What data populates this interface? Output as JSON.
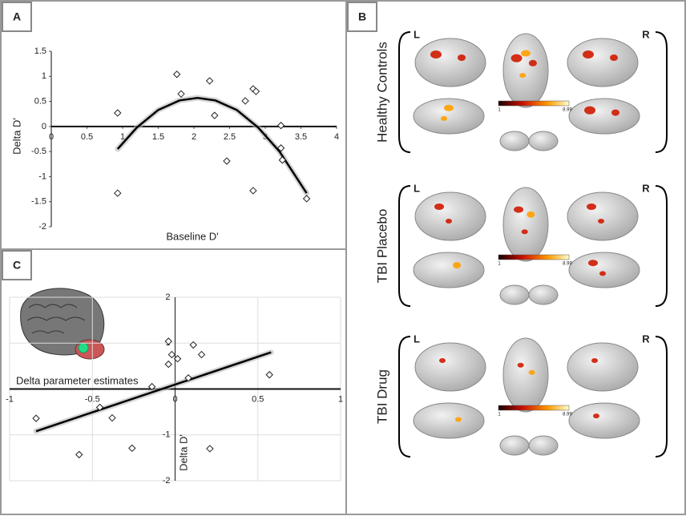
{
  "panel_labels": [
    "A",
    "B",
    "C"
  ],
  "chart_data": [
    {
      "type": "scatter",
      "ylabel": "Delta D'",
      "xlabel": "Baseline D'",
      "x": [
        0.93,
        0.93,
        1.76,
        1.82,
        2.22,
        2.29,
        2.46,
        2.72,
        2.83,
        2.87,
        2.83,
        3.22,
        3.22,
        3.24,
        3.58
      ],
      "values": [
        0.27,
        -1.33,
        1.04,
        0.65,
        0.91,
        0.22,
        -0.69,
        0.51,
        0.75,
        0.7,
        -1.28,
        0.02,
        -0.43,
        -0.67,
        -1.44
      ],
      "trend": {
        "x": [
          0.93,
          1.2,
          1.5,
          1.8,
          2.05,
          2.3,
          2.6,
          2.9,
          3.2,
          3.58
        ],
        "values": [
          -0.45,
          -0.02,
          0.33,
          0.52,
          0.57,
          0.52,
          0.33,
          -0.02,
          -0.5,
          -1.33
        ]
      },
      "xlim": [
        0,
        4
      ],
      "ylim": [
        -2,
        1.5
      ],
      "xticks": [
        0,
        0.5,
        1,
        1.5,
        2,
        2.5,
        3,
        3.5,
        4
      ],
      "yticks": [
        -2,
        -1.5,
        -1,
        -0.5,
        0,
        0.5,
        1,
        1.5
      ],
      "grid": false
    },
    {
      "type": "scatter",
      "ylabel": "Delta D'",
      "xlabel": "Delta parameter estimates",
      "x": [
        -0.84,
        -0.58,
        -0.455,
        -0.38,
        -0.26,
        -0.14,
        -0.04,
        -0.04,
        -0.02,
        0.015,
        0.11,
        0.16,
        0.08,
        0.21,
        0.57
      ],
      "values": [
        -0.64,
        -1.43,
        -0.4,
        -0.63,
        -1.29,
        0.05,
        0.54,
        1.04,
        0.75,
        0.66,
        0.96,
        0.75,
        0.24,
        -1.3,
        0.31
      ],
      "trend": {
        "x": [
          -0.84,
          0.58
        ],
        "values": [
          -0.92,
          0.8
        ]
      },
      "xlim": [
        -1,
        1
      ],
      "ylim": [
        -2,
        2
      ],
      "xticks": [
        -1,
        -0.5,
        0,
        0.5,
        1
      ],
      "yticks": [
        -2,
        -1,
        1,
        2
      ],
      "grid": true
    }
  ],
  "brain_panel": {
    "groups": [
      {
        "title": "Healthy Controls",
        "left": "L",
        "right": "R",
        "colorbar": [
          1,
          8.99
        ]
      },
      {
        "title": "TBI Placebo",
        "left": "L",
        "right": "R",
        "colorbar": [
          1,
          8.99
        ]
      },
      {
        "title": "TBI Drug",
        "left": "L",
        "right": "R",
        "colorbar": [
          1,
          8.99
        ]
      }
    ]
  }
}
